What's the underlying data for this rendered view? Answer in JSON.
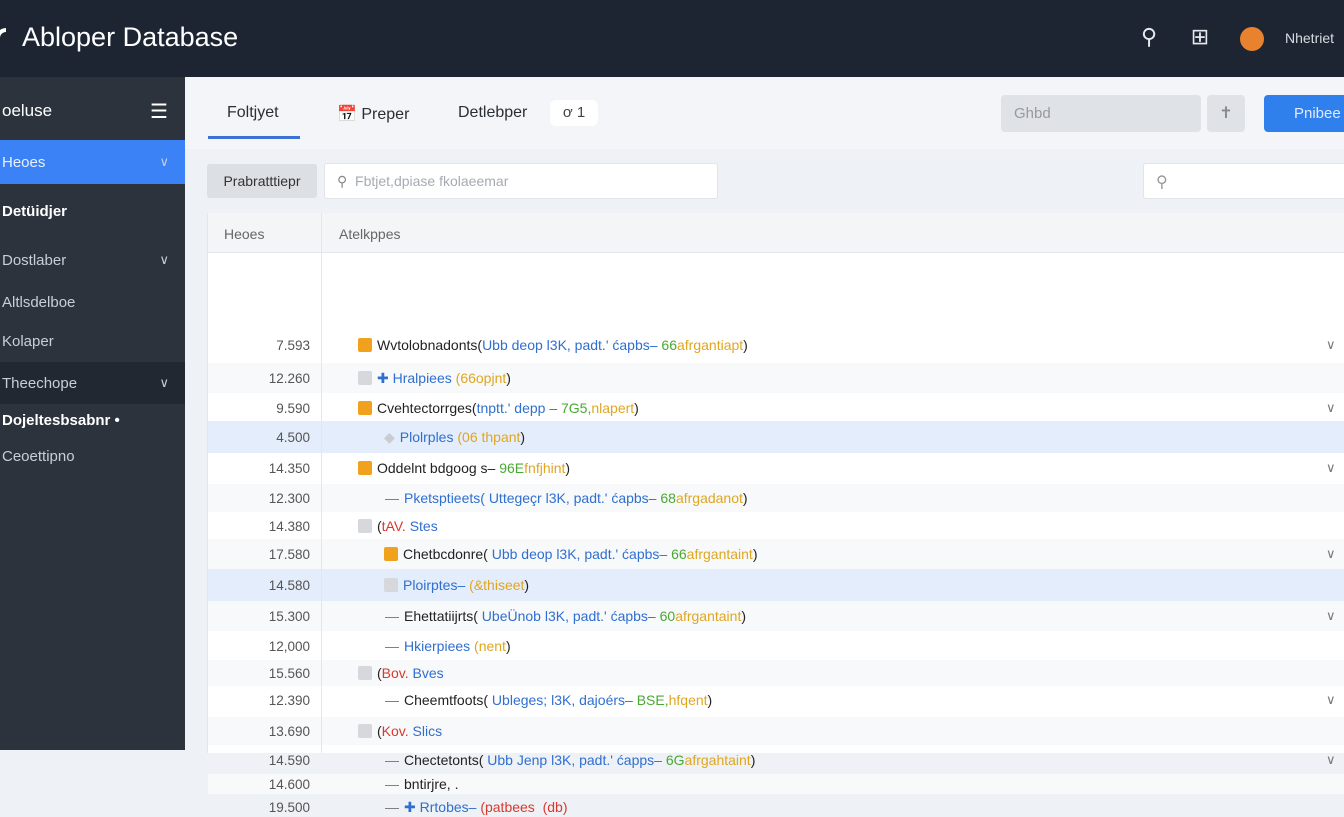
{
  "app": {
    "title": "Abloper Database",
    "user": "Nhetriet"
  },
  "sidebar": {
    "header": "oeluse",
    "items": [
      {
        "label": "Heoes",
        "active": true,
        "chevron": true
      },
      {
        "label": "Detüidjer",
        "bold": true
      },
      {
        "label": "Dostlaber",
        "chevron": true
      },
      {
        "label": "Altlsdelboe"
      },
      {
        "label": "Kolaper"
      },
      {
        "label": "Theechope",
        "chevron": true,
        "dark": true
      },
      {
        "label": "Dojeltesbsabnr •",
        "bold": true
      },
      {
        "label": "Ceoettipno"
      }
    ]
  },
  "tabs": [
    {
      "label": "Foltjyet",
      "active": true
    },
    {
      "label": "Preper",
      "icon": "calendar-icon"
    },
    {
      "label": "Detlebper"
    }
  ],
  "badge": "ơ 1",
  "toolbar": {
    "grid_placeholder": "Ghbd",
    "primary_label": "Pnibee"
  },
  "filter": {
    "label": "Prabratttiepr",
    "search_placeholder": "Fbtjet,dpiase fkolaeemar"
  },
  "table": {
    "columns": [
      "Heoes",
      "Atelkppes"
    ],
    "rows": [
      {
        "num": "7.593",
        "level": 0,
        "icon": "orange",
        "chev": true,
        "segs": [
          [
            "black",
            "Wvtolobnadonts("
          ],
          [
            "blue",
            "Ubb deop l3K, padt.' ćapbs–"
          ],
          [
            "green",
            " 66"
          ],
          [
            "yellow",
            "afrgantiapt"
          ],
          [
            "black",
            ")"
          ]
        ]
      },
      {
        "num": "12.260",
        "level": 0,
        "icon": "gray",
        "segs": [
          [
            "blue",
            "✚ Hralpiees"
          ],
          [
            "yellow",
            " (66opjnt"
          ],
          [
            "black",
            ")"
          ]
        ]
      },
      {
        "num": "9.590",
        "level": 0,
        "icon": "orange",
        "chev": true,
        "segs": [
          [
            "black",
            "Cvehtectorrges("
          ],
          [
            "blue",
            "tnptt.' depp –"
          ],
          [
            "green",
            " 7G5,"
          ],
          [
            "yellow",
            "nlapert"
          ],
          [
            "black",
            ")"
          ]
        ]
      },
      {
        "num": "4.500",
        "level": 1,
        "icon": "diamond",
        "hl": true,
        "segs": [
          [
            "blue",
            "Plolrples"
          ],
          [
            "yellow",
            " (06 thpant"
          ],
          [
            "black",
            ")"
          ]
        ]
      },
      {
        "num": "14.350",
        "level": 0,
        "icon": "orange",
        "chev": true,
        "segs": [
          [
            "black",
            "Oddelnt bdgoog s–"
          ],
          [
            "green",
            " 96E"
          ],
          [
            "yellow",
            "fnfjhint"
          ],
          [
            "black",
            ")"
          ]
        ]
      },
      {
        "num": "12.300",
        "level": 1,
        "icon": "dash",
        "segs": [
          [
            "blue",
            "Pketsptieets( Uttegeçr l3K, padt.' ćapbs–"
          ],
          [
            "green",
            " 68"
          ],
          [
            "yellow",
            "afrgadanot"
          ],
          [
            "black",
            ")"
          ]
        ]
      },
      {
        "num": "14.380",
        "level": 0,
        "icon": "gray",
        "segs": [
          [
            "black",
            "("
          ],
          [
            "red",
            "tAV."
          ],
          [
            "blue",
            " Stes"
          ]
        ]
      },
      {
        "num": "17.580",
        "level": 1,
        "icon": "orange",
        "chev": true,
        "segs": [
          [
            "black",
            "Chetbcdonre("
          ],
          [
            "blue",
            " Ubb deop l3K, padt.' ćapbs–"
          ],
          [
            "green",
            " 66"
          ],
          [
            "yellow",
            "afrgantaint"
          ],
          [
            "black",
            ")"
          ]
        ]
      },
      {
        "num": "14.580",
        "level": 1,
        "icon": "gray",
        "hl": true,
        "segs": [
          [
            "blue",
            "Ploirptes–"
          ],
          [
            "yellow",
            " (&thiseet"
          ],
          [
            "black",
            ")"
          ]
        ]
      },
      {
        "num": "15.300",
        "level": 1,
        "icon": "dash",
        "chev": true,
        "segs": [
          [
            "black",
            "Ehettatiijrts("
          ],
          [
            "blue",
            " UbeÜnob l3K, padt.' ćapbs–"
          ],
          [
            "green",
            " 60"
          ],
          [
            "yellow",
            "afrgantaint"
          ],
          [
            "black",
            ")"
          ]
        ]
      },
      {
        "num": "12,000",
        "level": 1,
        "icon": "dash",
        "segs": [
          [
            "blue",
            "Hkierpiees"
          ],
          [
            "yellow",
            " (nent"
          ],
          [
            "black",
            ")"
          ]
        ]
      },
      {
        "num": "15.560",
        "level": 0,
        "icon": "gray",
        "segs": [
          [
            "black",
            "("
          ],
          [
            "red",
            "Bov."
          ],
          [
            "blue",
            " Bves"
          ]
        ]
      },
      {
        "num": "12.390",
        "level": 1,
        "icon": "dash",
        "chev": true,
        "segs": [
          [
            "black",
            "Cheemtfoots("
          ],
          [
            "blue",
            " Ubleges; l3K, dajoérs–"
          ],
          [
            "green",
            " BSE,"
          ],
          [
            "yellow",
            "hfqent"
          ],
          [
            "black",
            ")"
          ]
        ]
      },
      {
        "num": "13.690",
        "level": 0,
        "icon": "gray",
        "segs": [
          [
            "black",
            "("
          ],
          [
            "red",
            "Kov."
          ],
          [
            "blue",
            " Slics"
          ]
        ]
      },
      {
        "num": "14.590",
        "level": 1,
        "icon": "dash",
        "chev": true,
        "segs": [
          [
            "black",
            "Chectetonts("
          ],
          [
            "blue",
            " Ubb Jenp l3K, padt.' ćapps–"
          ],
          [
            "green",
            " 6G"
          ],
          [
            "yellow",
            "afrgahtaint"
          ],
          [
            "black",
            ")"
          ]
        ]
      },
      {
        "num": "14.600",
        "level": 1,
        "icon": "dash",
        "segs": [
          [
            "black",
            "bntirjre, ."
          ]
        ]
      },
      {
        "num": "19.500",
        "level": 1,
        "icon": "dash",
        "segs": [
          [
            "blue",
            "✚ Rrtobes–"
          ],
          [
            "red",
            " (patbees  (db)"
          ]
        ]
      }
    ]
  },
  "colors": {
    "accent": "#2f80ed",
    "topbar": "#1c2531",
    "sidebar": "#2c333d",
    "highlight": "#e4edfb"
  }
}
